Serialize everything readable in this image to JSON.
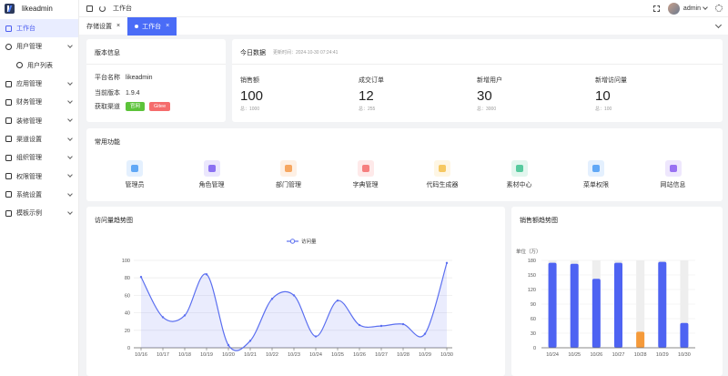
{
  "app": {
    "name": "likeadmin"
  },
  "sidebar": {
    "items": [
      {
        "label": "工作台",
        "active": true
      },
      {
        "label": "用户管理",
        "expandable": true
      },
      {
        "label": "用户列表",
        "sub": true
      },
      {
        "label": "应用管理",
        "expandable": true
      },
      {
        "label": "财务管理",
        "expandable": true
      },
      {
        "label": "装修管理",
        "expandable": true
      },
      {
        "label": "渠道设置",
        "expandable": true
      },
      {
        "label": "组织管理",
        "expandable": true
      },
      {
        "label": "权限管理",
        "expandable": true
      },
      {
        "label": "系统设置",
        "expandable": true
      },
      {
        "label": "模板示例",
        "expandable": true
      }
    ]
  },
  "topbar": {
    "breadcrumb": "工作台",
    "user": "admin"
  },
  "tabs": [
    {
      "label": "存储设置",
      "active": false
    },
    {
      "label": "工作台",
      "active": true
    }
  ],
  "version_card": {
    "title": "版本信息",
    "rows": [
      {
        "key": "平台名称",
        "value": "likeadmin"
      },
      {
        "key": "当前版本",
        "value": "1.9.4"
      }
    ],
    "channel_label": "获取渠道",
    "channels": [
      {
        "label": "官网",
        "color": "#5cc33a"
      },
      {
        "label": "Gitee",
        "color": "#f56c6c"
      }
    ]
  },
  "today_card": {
    "title": "今日数据",
    "update_time": "更新时间：2024-10-30 07:24:41",
    "stats": [
      {
        "label": "销售额",
        "value": "100",
        "total": "总：1000"
      },
      {
        "label": "成交订单",
        "value": "12",
        "total": "总：255"
      },
      {
        "label": "新增用户",
        "value": "30",
        "total": "总：3000"
      },
      {
        "label": "新增访问量",
        "value": "10",
        "total": "总：100"
      }
    ]
  },
  "quick_card": {
    "title": "常用功能",
    "items": [
      {
        "label": "管理员",
        "icon": "admin-icon",
        "color": "#4a9bf5"
      },
      {
        "label": "角色管理",
        "icon": "role-icon",
        "color": "#7a5cf0"
      },
      {
        "label": "部门管理",
        "icon": "department-icon",
        "color": "#f59a4a"
      },
      {
        "label": "字典管理",
        "icon": "dictionary-icon",
        "color": "#f56c6c"
      },
      {
        "label": "代码生成器",
        "icon": "code-generator-icon",
        "color": "#f5c04a"
      },
      {
        "label": "素材中心",
        "icon": "material-icon",
        "color": "#3ec28f"
      },
      {
        "label": "菜单权限",
        "icon": "menu-permission-icon",
        "color": "#4a9bf5"
      },
      {
        "label": "网站信息",
        "icon": "website-info-icon",
        "color": "#8a5cf0"
      }
    ]
  },
  "visits_card": {
    "title": "访问量趋势图"
  },
  "sales_card": {
    "title": "销售额趋势图"
  },
  "chart_data": [
    {
      "type": "area",
      "title": "访问量趋势图",
      "legend": [
        "访问量"
      ],
      "legend_position": "top-center",
      "categories": [
        "10/16",
        "10/17",
        "10/18",
        "10/19",
        "10/20",
        "10/21",
        "10/22",
        "10/23",
        "10/24",
        "10/25",
        "10/26",
        "10/27",
        "10/28",
        "10/29",
        "10/30"
      ],
      "series": [
        {
          "name": "访问量",
          "values": [
            81,
            35,
            37,
            84,
            3,
            8,
            56,
            60,
            13,
            54,
            26,
            25,
            27,
            16,
            97
          ],
          "color": "#5b6ff0"
        }
      ],
      "ylim": [
        0,
        100
      ],
      "yticks": [
        0,
        20,
        40,
        60,
        80,
        100
      ],
      "grid": true
    },
    {
      "type": "bar",
      "title": "销售额趋势图",
      "ylabel": "单位（万）",
      "categories": [
        "10/24",
        "10/25",
        "10/26",
        "10/27",
        "10/28",
        "10/29",
        "10/30"
      ],
      "values": [
        175,
        173,
        142,
        175,
        33,
        177,
        51
      ],
      "highlight_index": 4,
      "colors": {
        "bar": "#4e63f2",
        "highlight": "#f59a3a",
        "background": "#eeeeee"
      },
      "ylim": [
        0,
        180
      ],
      "yticks": [
        0,
        30,
        60,
        90,
        120,
        150,
        180
      ]
    }
  ]
}
